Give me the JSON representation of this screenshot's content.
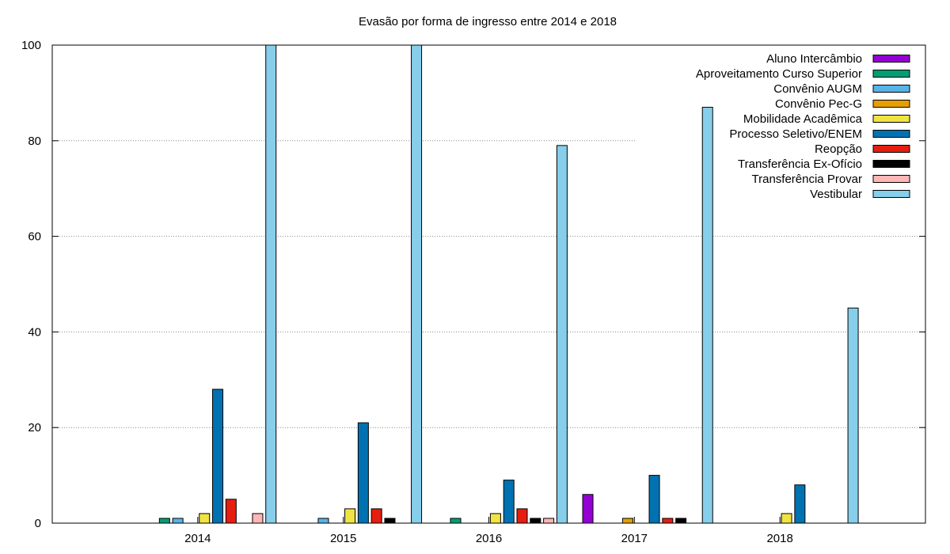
{
  "chart_data": {
    "type": "bar",
    "title": "Evasão por forma de ingresso entre 2014 e 2018",
    "xlabel": "",
    "ylabel": "",
    "ylim": [
      0,
      100
    ],
    "yticks": [
      0,
      20,
      40,
      60,
      80,
      100
    ],
    "grid": "horizontal-dotted",
    "legend_position": "top-right",
    "categories": [
      "2014",
      "2015",
      "2016",
      "2017",
      "2018"
    ],
    "series": [
      {
        "name": "Aluno Intercâmbio",
        "color": "#9400d3",
        "values": [
          0,
          0,
          0,
          6,
          0
        ]
      },
      {
        "name": "Aproveitamento Curso Superior",
        "color": "#009e73",
        "values": [
          1,
          0,
          1,
          0,
          0
        ]
      },
      {
        "name": "Convênio AUGM",
        "color": "#56b4e9",
        "values": [
          1,
          1,
          0,
          0,
          0
        ]
      },
      {
        "name": "Convênio Pec-G",
        "color": "#e69f00",
        "values": [
          0,
          0,
          0,
          1,
          0
        ]
      },
      {
        "name": "Mobilidade Acadêmica",
        "color": "#f0e442",
        "values": [
          2,
          3,
          2,
          0,
          2
        ]
      },
      {
        "name": "Processo Seletivo/ENEM",
        "color": "#0072b2",
        "values": [
          28,
          21,
          9,
          10,
          8
        ]
      },
      {
        "name": "Reopção",
        "color": "#e51e10",
        "values": [
          5,
          3,
          3,
          1,
          0
        ]
      },
      {
        "name": "Transferência Ex-Ofício",
        "color": "#000000",
        "values": [
          0,
          1,
          1,
          1,
          0
        ]
      },
      {
        "name": "Transferência Provar",
        "color": "#ffb6b6",
        "values": [
          2,
          0,
          1,
          0,
          0
        ]
      },
      {
        "name": "Vestibular",
        "color": "#87ceeb",
        "values": [
          100,
          100,
          79,
          87,
          45
        ]
      }
    ]
  }
}
